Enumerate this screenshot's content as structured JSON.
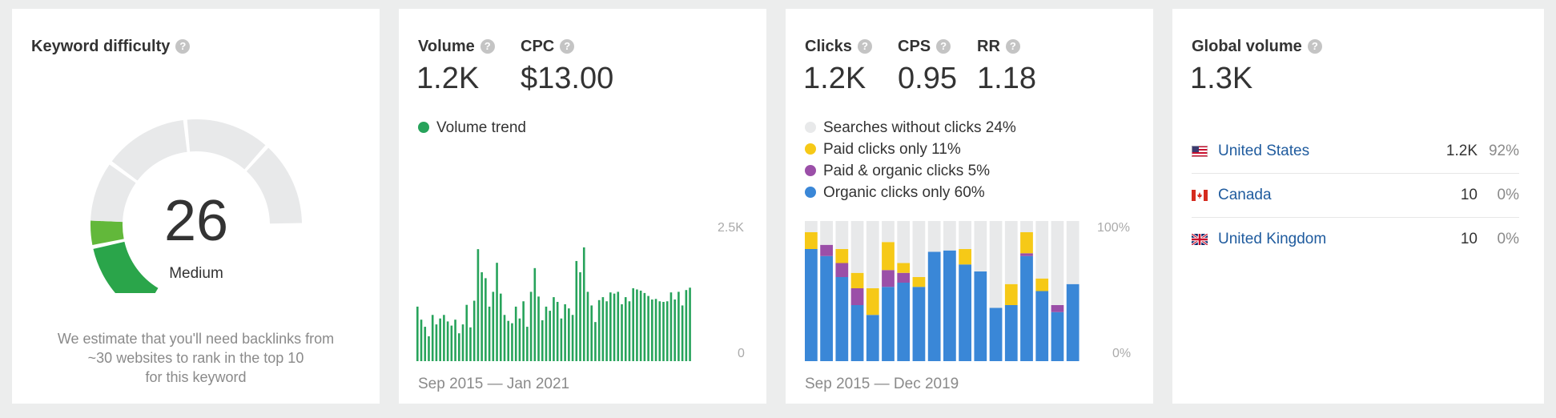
{
  "keyword_difficulty": {
    "title": "Keyword difficulty",
    "help": "?",
    "value": "26",
    "level_label": "Medium",
    "gauge_fraction": 0.26,
    "description_lines": [
      "We estimate that you'll need backlinks from",
      "~30 websites to rank in the top 10",
      "for this keyword"
    ],
    "colors": {
      "filled_dark": "#2aa54a",
      "filled_light": "#62b83a",
      "empty": "#e8e9ea"
    }
  },
  "volume": {
    "title": "Volume",
    "value": "1.2K",
    "cpc_title": "CPC",
    "cpc_value": "$13.00",
    "legend": "Volume trend",
    "color": "#27a35b",
    "y_max_label": "2.5K",
    "y_min_label": "0",
    "date_range": "Sep 2015 — Jan 2021"
  },
  "clicks": {
    "title": "Clicks",
    "value": "1.2K",
    "cps_title": "CPS",
    "cps_value": "0.95",
    "rr_title": "RR",
    "rr_value": "1.18",
    "legend": [
      {
        "label": "Searches without clicks 24%",
        "color": "#e8e9ea"
      },
      {
        "label": "Paid clicks only 11%",
        "color": "#f6c917"
      },
      {
        "label": "Paid & organic clicks 5%",
        "color": "#9b4fa8"
      },
      {
        "label": "Organic clicks only 60%",
        "color": "#3a87d7"
      }
    ],
    "y_max_label": "100%",
    "y_min_label": "0%",
    "date_range": "Sep 2015 — Dec 2019"
  },
  "global_volume": {
    "title": "Global volume",
    "value": "1.3K",
    "countries": [
      {
        "name": "United States",
        "volume": "1.2K",
        "percent": "92%",
        "flag_icon": "us-flag-icon"
      },
      {
        "name": "Canada",
        "volume": "10",
        "percent": "0%",
        "flag_icon": "canada-flag-icon"
      },
      {
        "name": "United Kingdom",
        "volume": "10",
        "percent": "0%",
        "flag_icon": "uk-flag-icon"
      }
    ]
  },
  "chart_data": [
    {
      "type": "bar",
      "series": [
        {
          "name": "Volume trend",
          "values": [
            920,
            700,
            580,
            420,
            780,
            620,
            720,
            780,
            670,
            600,
            700,
            470,
            620,
            950,
            570,
            1020,
            1890,
            1500,
            1400,
            920,
            1170,
            1660,
            1140,
            780,
            680,
            640,
            920,
            720,
            1010,
            580,
            1170,
            1570,
            1090,
            690,
            920,
            850,
            1080,
            1000,
            720,
            960,
            890,
            780,
            1690,
            1500,
            1920,
            1170,
            940,
            660,
            1030,
            1080,
            1010,
            1160,
            1140,
            1170,
            960,
            1080,
            1010,
            1230,
            1210,
            1190,
            1150,
            1100,
            1040,
            1050,
            1010,
            1000,
            1010,
            1160,
            1040,
            1170,
            940,
            1200,
            1240
          ]
        }
      ],
      "ylim": [
        0,
        2500
      ]
    },
    {
      "type": "bar",
      "stacked": true,
      "series": [
        {
          "name": "Organic clicks only",
          "values": [
            80,
            75,
            60,
            40,
            33,
            53,
            56,
            53,
            78,
            79,
            69,
            64,
            38,
            40,
            75,
            50,
            35,
            55
          ]
        },
        {
          "name": "Paid & organic clicks",
          "values": [
            0,
            8,
            10,
            12,
            0,
            12,
            7,
            0,
            0,
            0,
            0,
            0,
            0,
            0,
            2,
            0,
            5,
            0
          ]
        },
        {
          "name": "Paid clicks only",
          "values": [
            12,
            0,
            10,
            11,
            19,
            20,
            7,
            7,
            0,
            0,
            11,
            0,
            0,
            15,
            15,
            9,
            0,
            0
          ]
        },
        {
          "name": "Searches without clicks",
          "values": [
            8,
            17,
            20,
            37,
            48,
            15,
            30,
            40,
            22,
            21,
            20,
            36,
            62,
            45,
            8,
            41,
            60,
            45
          ]
        }
      ],
      "ylim": [
        0,
        100
      ]
    }
  ]
}
